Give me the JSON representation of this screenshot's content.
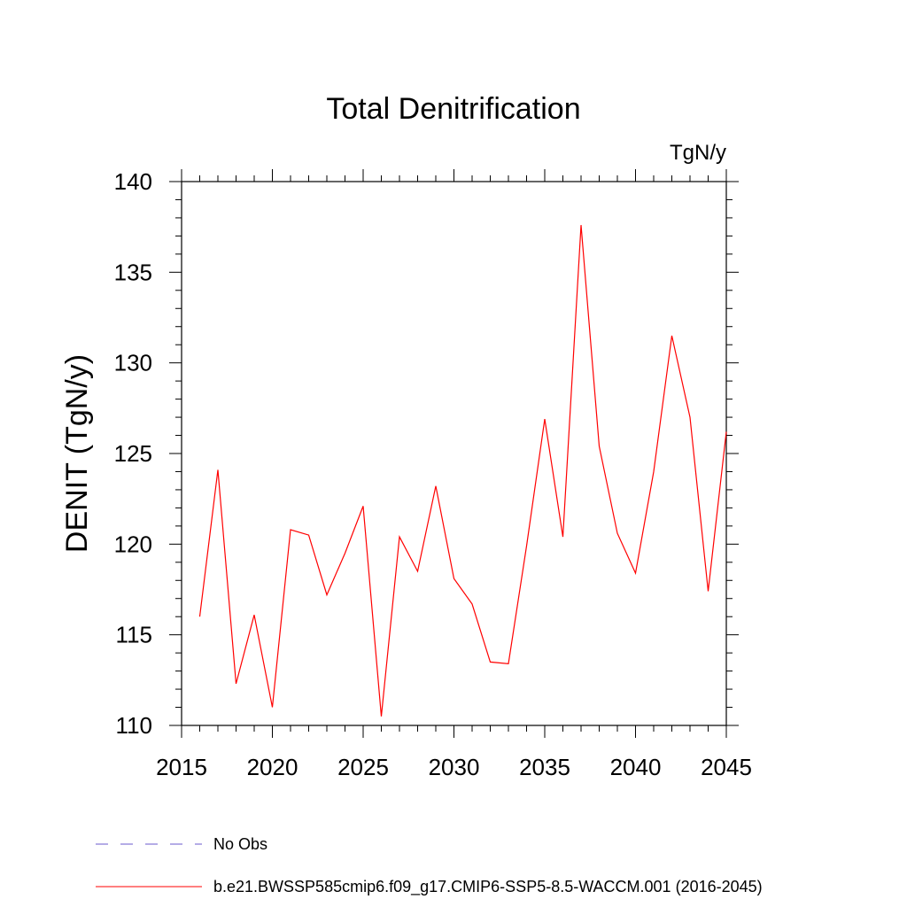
{
  "chart_data": {
    "type": "line",
    "title": "Total Denitrification",
    "units": "TgN/y",
    "ylabel": "DENIT  (TgN/y)",
    "xlabel": "",
    "xlim": [
      2015,
      2045
    ],
    "ylim": [
      110,
      140
    ],
    "x_ticks": [
      2015,
      2020,
      2025,
      2030,
      2035,
      2040,
      2045
    ],
    "y_ticks": [
      110,
      115,
      120,
      125,
      130,
      135,
      140
    ],
    "grid": false,
    "series": [
      {
        "name": "b.e21.BWSSP585cmip6.f09_g17.CMIP6-SSP5-8.5-WACCM.001 (2016-2045)",
        "color": "#ff0000",
        "dash": "solid",
        "x": [
          2016,
          2017,
          2018,
          2019,
          2020,
          2021,
          2022,
          2023,
          2024,
          2025,
          2026,
          2027,
          2028,
          2029,
          2030,
          2031,
          2032,
          2033,
          2034,
          2035,
          2036,
          2037,
          2038,
          2039,
          2040,
          2041,
          2042,
          2043,
          2044,
          2045
        ],
        "values": [
          116.0,
          124.1,
          112.3,
          116.1,
          111.0,
          120.8,
          120.5,
          117.2,
          119.5,
          122.1,
          110.5,
          120.4,
          118.5,
          123.2,
          118.1,
          116.7,
          113.5,
          113.4,
          119.9,
          126.9,
          120.4,
          137.6,
          125.4,
          120.6,
          118.4,
          124.0,
          131.5,
          127.0,
          117.4,
          126.2
        ]
      }
    ],
    "legend": [
      {
        "label": "No Obs",
        "color": "#6a5acd",
        "dash": "dashed"
      },
      {
        "label": "b.e21.BWSSP585cmip6.f09_g17.CMIP6-SSP5-8.5-WACCM.001 (2016-2045)",
        "color": "#ff0000",
        "dash": "solid"
      }
    ]
  }
}
